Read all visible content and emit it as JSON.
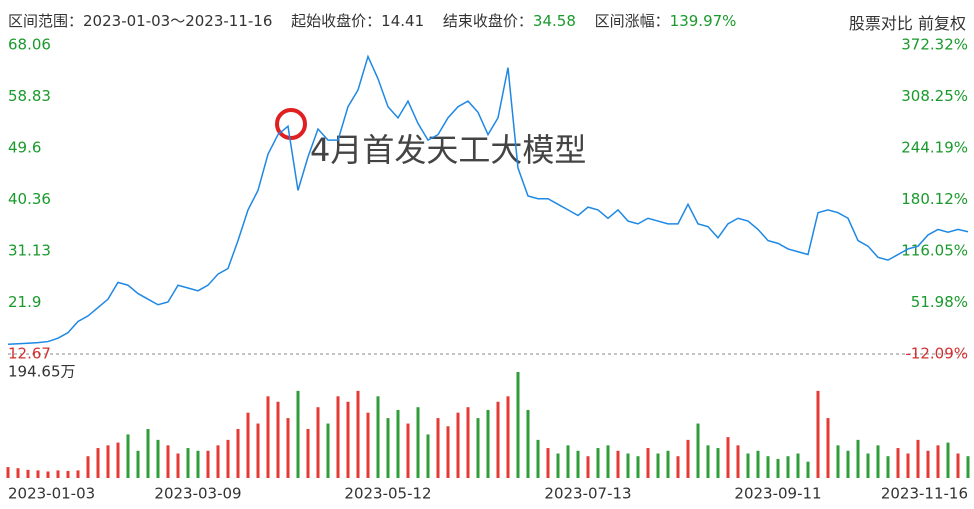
{
  "header": {
    "range_label": "区间范围：",
    "range": "2023-01-03～2023-11-16",
    "start_label": "起始收盘价：",
    "start": "14.41",
    "end_label": "结束收盘价：",
    "end": "34.58",
    "change_label": "区间涨幅：",
    "change": "139.97%",
    "compare": "股票对比",
    "adjust": "前复权"
  },
  "chart_data": {
    "type": "line",
    "annotation": "4月首发天工大模型",
    "categories": [
      "2023-01-03",
      null,
      null,
      null,
      null,
      null,
      null,
      null,
      null,
      null,
      null,
      null,
      null,
      null,
      null,
      null,
      null,
      null,
      null,
      "2023-03-09",
      null,
      null,
      null,
      null,
      null,
      null,
      null,
      null,
      null,
      null,
      null,
      null,
      null,
      null,
      null,
      null,
      null,
      null,
      "2023-05-12",
      null,
      null,
      null,
      null,
      null,
      null,
      null,
      null,
      null,
      null,
      null,
      null,
      null,
      null,
      null,
      null,
      null,
      null,
      null,
      "2023-07-13",
      null,
      null,
      null,
      null,
      null,
      null,
      null,
      null,
      null,
      null,
      null,
      null,
      null,
      null,
      null,
      null,
      null,
      null,
      "2023-09-11",
      null,
      null,
      null,
      null,
      null,
      null,
      null,
      null,
      null,
      null,
      null,
      null,
      null,
      null,
      null,
      null,
      null,
      null,
      "2023-11-16"
    ],
    "series": [
      {
        "color": "#1e88e5",
        "values": [
          14.41,
          14.5,
          14.6,
          14.7,
          14.9,
          15.5,
          16.5,
          18.5,
          19.5,
          21,
          22.5,
          25.5,
          25,
          23.5,
          22.5,
          21.5,
          22,
          25,
          24.5,
          24,
          25,
          27,
          28,
          33,
          38.5,
          42,
          48.5,
          52,
          53.5,
          42,
          48,
          53,
          51,
          51,
          57,
          60,
          66,
          62,
          57,
          55,
          58,
          54,
          51,
          52,
          55,
          57,
          58,
          56,
          52,
          55,
          64,
          46,
          41,
          40.5,
          40.5,
          39.5,
          38.5,
          37.5,
          39,
          38.5,
          37,
          38.5,
          36.5,
          36,
          37,
          36.5,
          36,
          36,
          39.5,
          36,
          35.5,
          33.5,
          36,
          37,
          36.5,
          35,
          33,
          32.5,
          31.5,
          31,
          30.5,
          38,
          38.5,
          38,
          37,
          33,
          32,
          30,
          29.5,
          30.5,
          31.5,
          32,
          34,
          35,
          34.5,
          35,
          34.58
        ]
      }
    ],
    "volume": {
      "up_color": "#e53935",
      "down_color": "#2e9d3a",
      "values": [
        20,
        18,
        15,
        14,
        12,
        14,
        13,
        14,
        40,
        55,
        60,
        65,
        80,
        50,
        90,
        70,
        60,
        45,
        55,
        50,
        50,
        60,
        70,
        90,
        120,
        100,
        150,
        140,
        110,
        160,
        90,
        130,
        100,
        150,
        140,
        160,
        120,
        150,
        110,
        125,
        100,
        130,
        80,
        110,
        95,
        120,
        130,
        110,
        125,
        140,
        150,
        194.65,
        125,
        70,
        55,
        45,
        60,
        50,
        40,
        55,
        60,
        50,
        45,
        40,
        55,
        45,
        50,
        40,
        70,
        100,
        60,
        55,
        75,
        60,
        45,
        50,
        40,
        35,
        40,
        45,
        30,
        160,
        110,
        60,
        50,
        70,
        45,
        60,
        40,
        55,
        45,
        70,
        50,
        60,
        65,
        45,
        40
      ],
      "ylim": [
        0,
        194.65
      ],
      "yticks": [
        {
          "value": 194.65,
          "label": "194.65万"
        }
      ]
    },
    "ylim": [
      12.67,
      68.06
    ],
    "yticks": [
      12.67,
      21.9,
      31.13,
      40.36,
      49.6,
      58.83,
      68.06
    ],
    "y2lim": [
      -12.09,
      372.32
    ],
    "y2ticks": [
      {
        "value": -12.09,
        "label": "-12.09%"
      },
      {
        "value": 51.98,
        "label": "51.98%"
      },
      {
        "value": 116.05,
        "label": "116.05%"
      },
      {
        "value": 180.12,
        "label": "180.12%"
      },
      {
        "value": 244.19,
        "label": "244.19%"
      },
      {
        "value": 308.25,
        "label": "308.25%"
      },
      {
        "value": 372.32,
        "label": "372.32%"
      }
    ],
    "tick_color": "#1a9a2c",
    "base_tick_color": "#d32f2f",
    "grid": false
  }
}
